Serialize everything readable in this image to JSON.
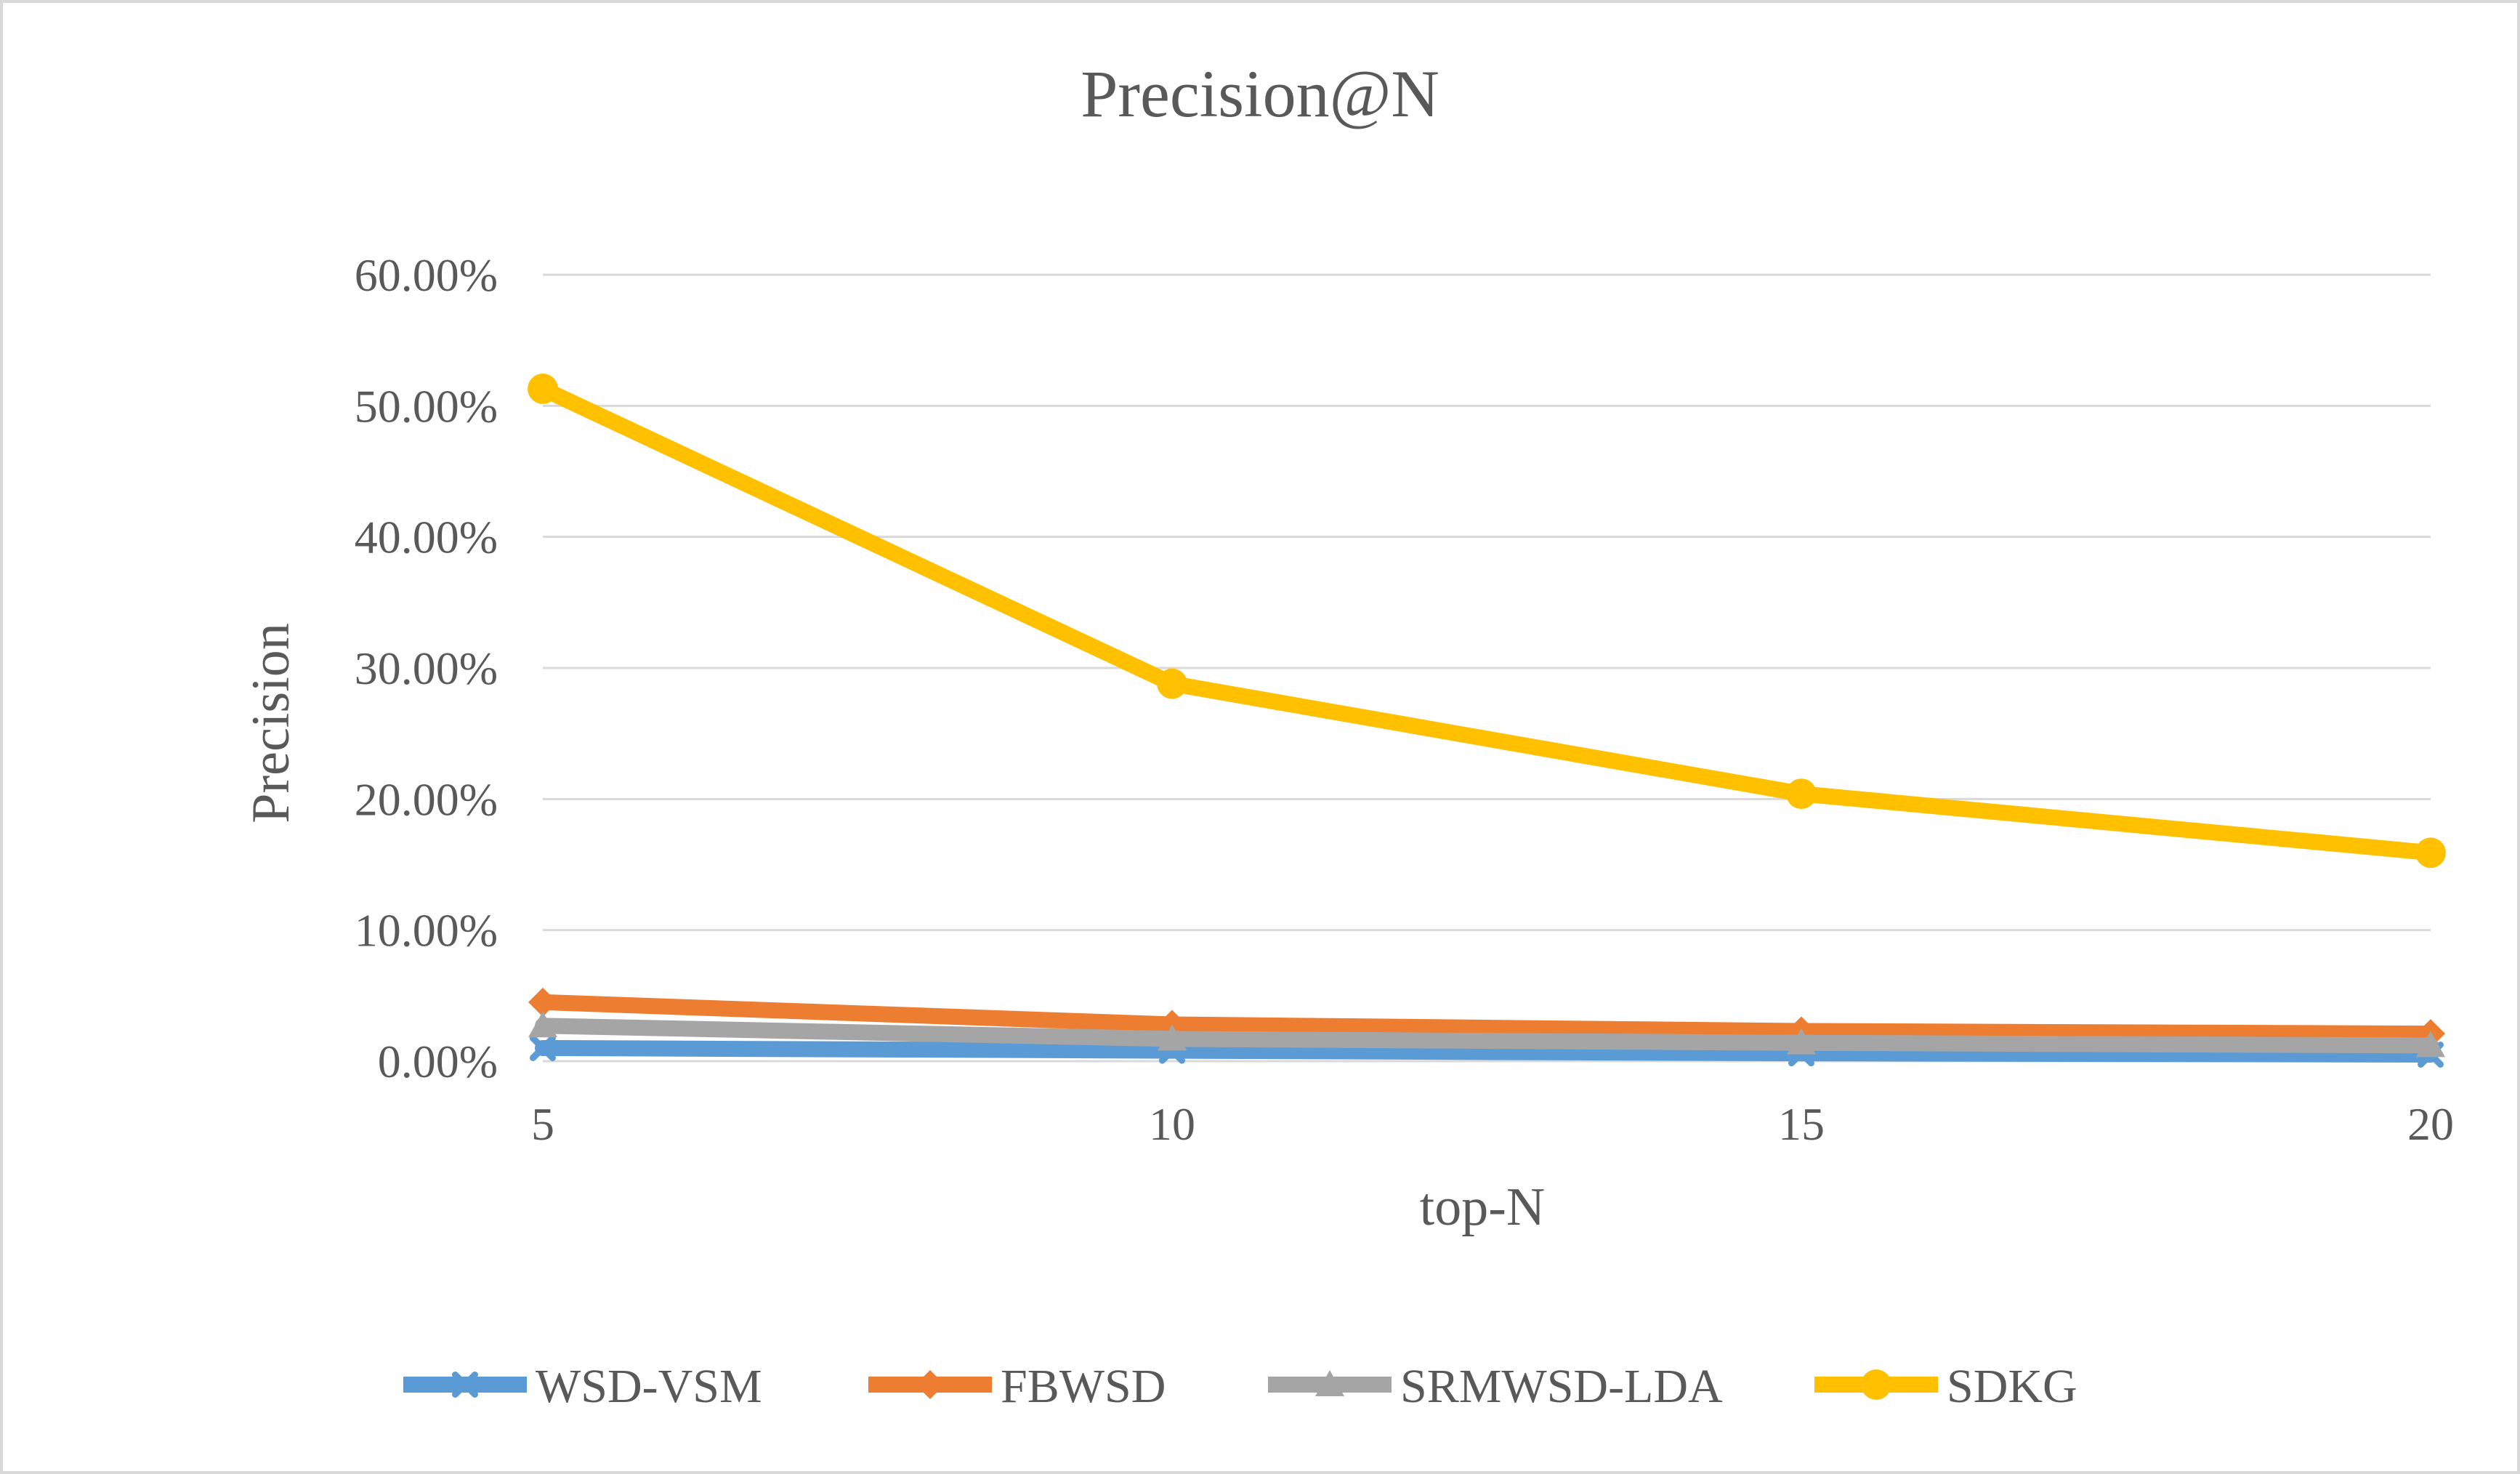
{
  "chart_data": {
    "type": "line",
    "title": "Precision@N",
    "xlabel": "top-N",
    "ylabel": "Precision",
    "categories": [
      "5",
      "10",
      "15",
      "20"
    ],
    "x": [
      5,
      10,
      15,
      20
    ],
    "ylim": [
      0,
      0.6
    ],
    "y_ticks": [
      "0.00%",
      "10.00%",
      "20.00%",
      "30.00%",
      "40.00%",
      "50.00%",
      "60.00%"
    ],
    "y_tick_values": [
      0,
      0.1,
      0.2,
      0.3,
      0.4,
      0.5,
      0.6
    ],
    "grid": true,
    "legend_position": "bottom",
    "series": [
      {
        "name": "WSD-VSM",
        "values": [
          0.01,
          0.008,
          0.006,
          0.005
        ],
        "color": "#5b9bd5",
        "marker": "x"
      },
      {
        "name": "FBWSD",
        "values": [
          0.045,
          0.028,
          0.023,
          0.021
        ],
        "color": "#ed7d31",
        "marker": "diamond"
      },
      {
        "name": "SRMWSD-LDA",
        "values": [
          0.027,
          0.017,
          0.014,
          0.012
        ],
        "color": "#a5a5a5",
        "marker": "triangle"
      },
      {
        "name": "SDKG",
        "values": [
          0.513,
          0.288,
          0.204,
          0.159
        ],
        "color": "#ffc000",
        "marker": "circle"
      }
    ]
  }
}
